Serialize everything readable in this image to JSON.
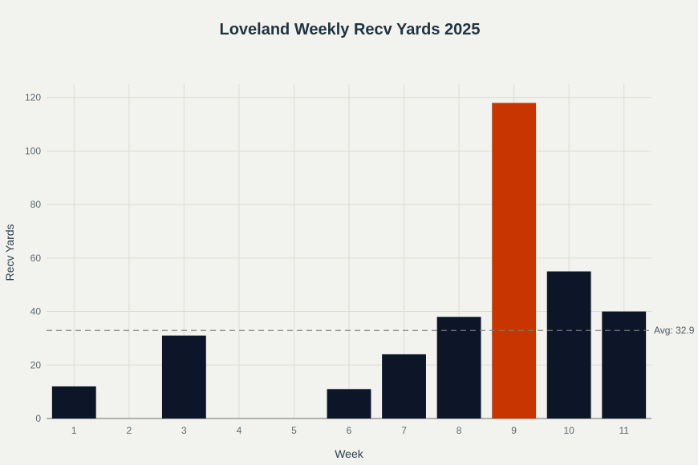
{
  "chart_data": {
    "type": "bar",
    "title": "Loveland Weekly Recv Yards 2025",
    "xlabel": "Week",
    "ylabel": "Recv Yards",
    "categories": [
      "1",
      "2",
      "3",
      "4",
      "5",
      "6",
      "7",
      "8",
      "9",
      "10",
      "11"
    ],
    "values": [
      12,
      0,
      31,
      0,
      0,
      11,
      24,
      38,
      118,
      55,
      40
    ],
    "ylim": [
      0,
      125
    ],
    "yticks": [
      0,
      20,
      40,
      60,
      80,
      100,
      120
    ],
    "grid": true,
    "highlight_index": 8,
    "average": {
      "value": 32.9,
      "label": "Avg: 32.9"
    },
    "colors": {
      "bar": "#0d1628",
      "highlight": "#c93500",
      "grid": "#dcdcd6",
      "average_line": "#7d7d7d"
    }
  }
}
